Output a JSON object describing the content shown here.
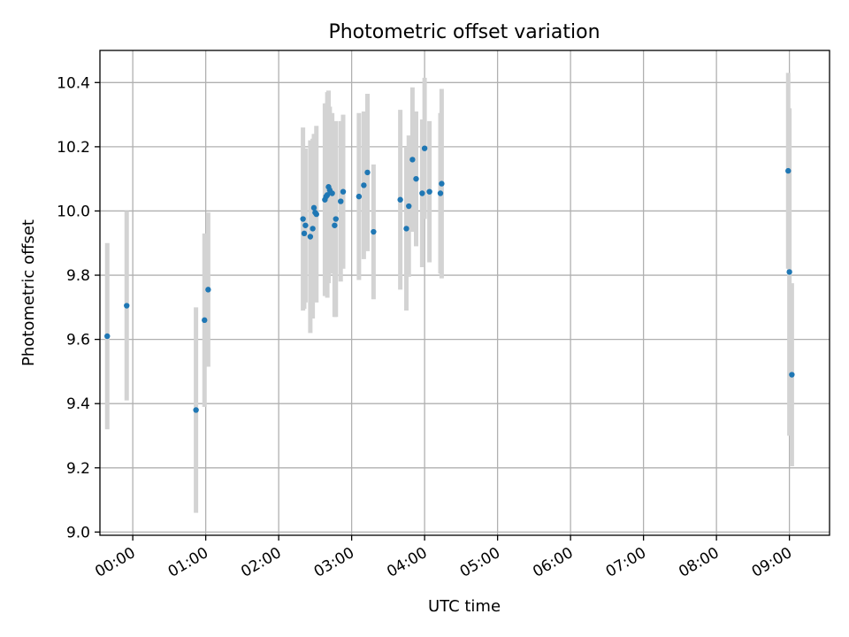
{
  "chart_data": {
    "type": "scatter",
    "title": "Photometric offset variation",
    "xlabel": "UTC time",
    "ylabel": "Photometric offset",
    "x_axis_type": "time",
    "xlim": [
      "23:33",
      "09:33"
    ],
    "ylim": [
      8.99,
      10.5
    ],
    "x_ticks": [
      "00:00",
      "01:00",
      "02:00",
      "03:00",
      "04:00",
      "05:00",
      "06:00",
      "07:00",
      "08:00",
      "09:00"
    ],
    "y_ticks": [
      9.0,
      9.2,
      9.4,
      9.6,
      9.8,
      10.0,
      10.2,
      10.4
    ],
    "grid": true,
    "colors": {
      "point": "#1f77b4",
      "error_bar": "#d3d3d3"
    },
    "points": [
      {
        "x": "23:39",
        "y": 9.61,
        "err": 0.29
      },
      {
        "x": "23:55",
        "y": 9.705,
        "err": 0.295
      },
      {
        "x": "00:52",
        "y": 9.38,
        "err": 0.32
      },
      {
        "x": "00:59",
        "y": 9.66,
        "err": 0.27
      },
      {
        "x": "01:02",
        "y": 9.755,
        "err": 0.24
      },
      {
        "x": "02:20",
        "y": 9.975,
        "err": 0.285
      },
      {
        "x": "02:21",
        "y": 9.93,
        "err": 0.235
      },
      {
        "x": "02:22",
        "y": 9.955,
        "err": 0.24
      },
      {
        "x": "02:26",
        "y": 9.92,
        "err": 0.3
      },
      {
        "x": "02:28",
        "y": 9.945,
        "err": 0.28
      },
      {
        "x": "02:29",
        "y": 10.01,
        "err": 0.23
      },
      {
        "x": "02:30",
        "y": 9.995,
        "err": 0.245
      },
      {
        "x": "02:31",
        "y": 9.99,
        "err": 0.275
      },
      {
        "x": "02:38",
        "y": 10.035,
        "err": 0.3
      },
      {
        "x": "02:39",
        "y": 10.045,
        "err": 0.29
      },
      {
        "x": "02:40",
        "y": 10.05,
        "err": 0.32
      },
      {
        "x": "02:41",
        "y": 10.075,
        "err": 0.3
      },
      {
        "x": "02:42",
        "y": 10.065,
        "err": 0.26
      },
      {
        "x": "02:44",
        "y": 10.055,
        "err": 0.25
      },
      {
        "x": "02:46",
        "y": 9.955,
        "err": 0.285
      },
      {
        "x": "02:47",
        "y": 9.975,
        "err": 0.305
      },
      {
        "x": "02:51",
        "y": 10.03,
        "err": 0.25
      },
      {
        "x": "02:53",
        "y": 10.06,
        "err": 0.24
      },
      {
        "x": "03:06",
        "y": 10.045,
        "err": 0.26
      },
      {
        "x": "03:10",
        "y": 10.08,
        "err": 0.23
      },
      {
        "x": "03:13",
        "y": 10.12,
        "err": 0.245
      },
      {
        "x": "03:18",
        "y": 9.935,
        "err": 0.21
      },
      {
        "x": "03:40",
        "y": 10.035,
        "err": 0.28
      },
      {
        "x": "03:45",
        "y": 9.945,
        "err": 0.255
      },
      {
        "x": "03:47",
        "y": 10.015,
        "err": 0.22
      },
      {
        "x": "03:50",
        "y": 10.16,
        "err": 0.225
      },
      {
        "x": "03:53",
        "y": 10.1,
        "err": 0.21
      },
      {
        "x": "03:58",
        "y": 10.055,
        "err": 0.23
      },
      {
        "x": "04:00",
        "y": 10.195,
        "err": 0.22
      },
      {
        "x": "04:04",
        "y": 10.06,
        "err": 0.22
      },
      {
        "x": "04:13",
        "y": 10.055,
        "err": 0.25
      },
      {
        "x": "04:14",
        "y": 10.085,
        "err": 0.295
      },
      {
        "x": "08:59",
        "y": 10.125,
        "err": 0.305
      },
      {
        "x": "09:00",
        "y": 9.81,
        "err": 0.51
      },
      {
        "x": "09:02",
        "y": 9.49,
        "err": 0.285
      }
    ]
  }
}
